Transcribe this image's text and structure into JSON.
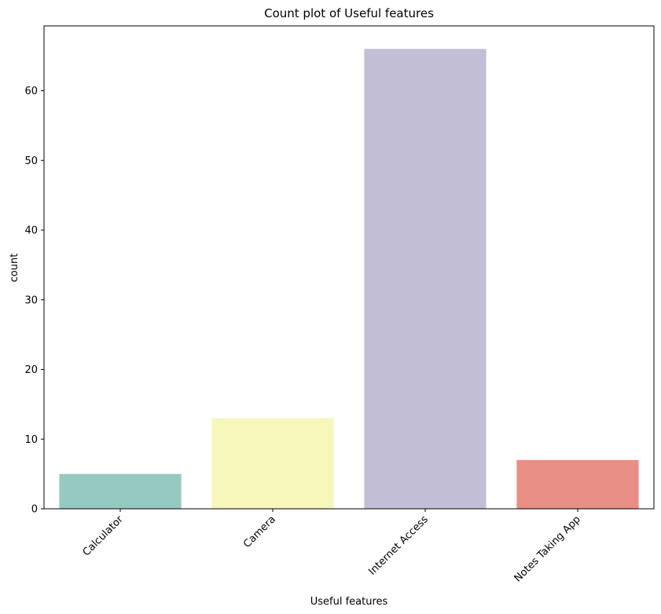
{
  "chart_data": {
    "type": "bar",
    "title": "Count plot of Useful features",
    "xlabel": "Useful features",
    "ylabel": "count",
    "categories": [
      "Calculator",
      "Camera",
      "Internet Access",
      "Notes Taking App"
    ],
    "values": [
      5,
      13,
      66,
      7
    ],
    "colors": [
      "#96c9c0",
      "#f7f6bb",
      "#c2bed6",
      "#e98e84"
    ],
    "ylim": [
      0,
      69.3
    ],
    "yticks": [
      0,
      10,
      20,
      30,
      40,
      50,
      60
    ],
    "grid": false,
    "legend": "none"
  }
}
